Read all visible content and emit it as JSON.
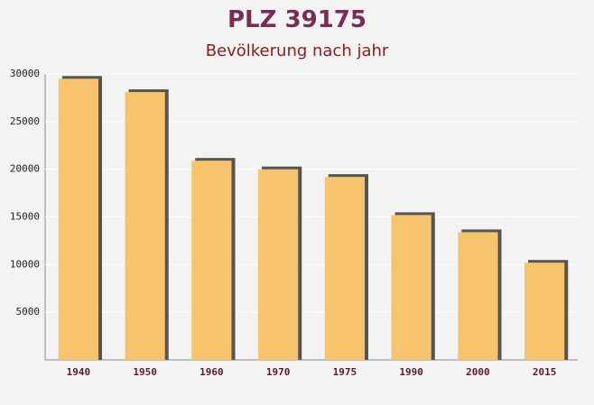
{
  "chart_data": {
    "type": "bar",
    "title": "PLZ 39175",
    "subtitle": "Bevölkerung nach jahr",
    "categories": [
      "1940",
      "1950",
      "1960",
      "1970",
      "1975",
      "1990",
      "2000",
      "2015"
    ],
    "values": [
      29500,
      28100,
      20900,
      20000,
      19200,
      15200,
      13400,
      10200
    ],
    "color": "#f7c46c",
    "ylim": [
      0,
      30000
    ],
    "yticks": [
      5000,
      10000,
      15000,
      20000,
      25000,
      30000
    ],
    "grid": true
  }
}
